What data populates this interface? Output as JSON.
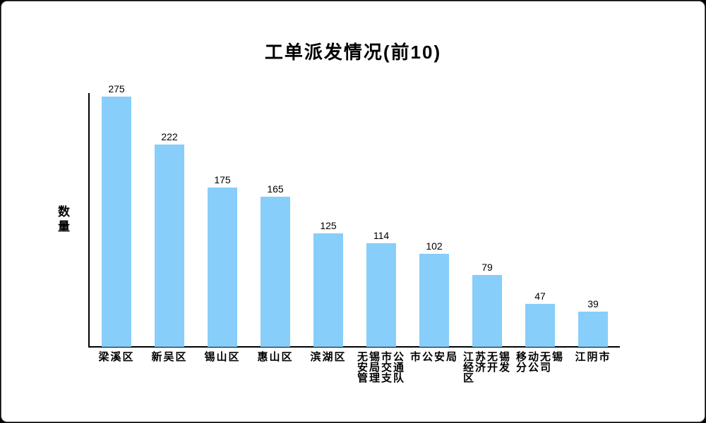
{
  "chart_data": {
    "type": "bar",
    "title": "工单派发情况(前10)",
    "xlabel": "",
    "ylabel": "数量",
    "categories": [
      "梁溪区",
      "新吴区",
      "锡山区",
      "惠山区",
      "滨湖区",
      "无锡市公安局交通管理支队",
      "市公安局",
      "江苏无锡经济开发区",
      "移动无锡分公司",
      "江阴市"
    ],
    "category_lines": [
      [
        "梁溪区"
      ],
      [
        "新吴区"
      ],
      [
        "锡山区"
      ],
      [
        "惠山区"
      ],
      [
        "滨湖区"
      ],
      [
        "无锡市公",
        "安局交通",
        "管理支队"
      ],
      [
        "市公安局"
      ],
      [
        "江苏无锡",
        "经济开发",
        "区"
      ],
      [
        "移动无锡",
        "分公司"
      ],
      [
        "江阴市"
      ]
    ],
    "values": [
      275,
      222,
      175,
      165,
      125,
      114,
      102,
      79,
      47,
      39
    ],
    "value_labels_shown": true,
    "ylim": [
      0,
      280
    ],
    "grid": false,
    "legend": "none",
    "bar_color": "#87CEFA",
    "axis_color": "#000000",
    "text_color": "#000000",
    "background_color": "#ffffff"
  }
}
